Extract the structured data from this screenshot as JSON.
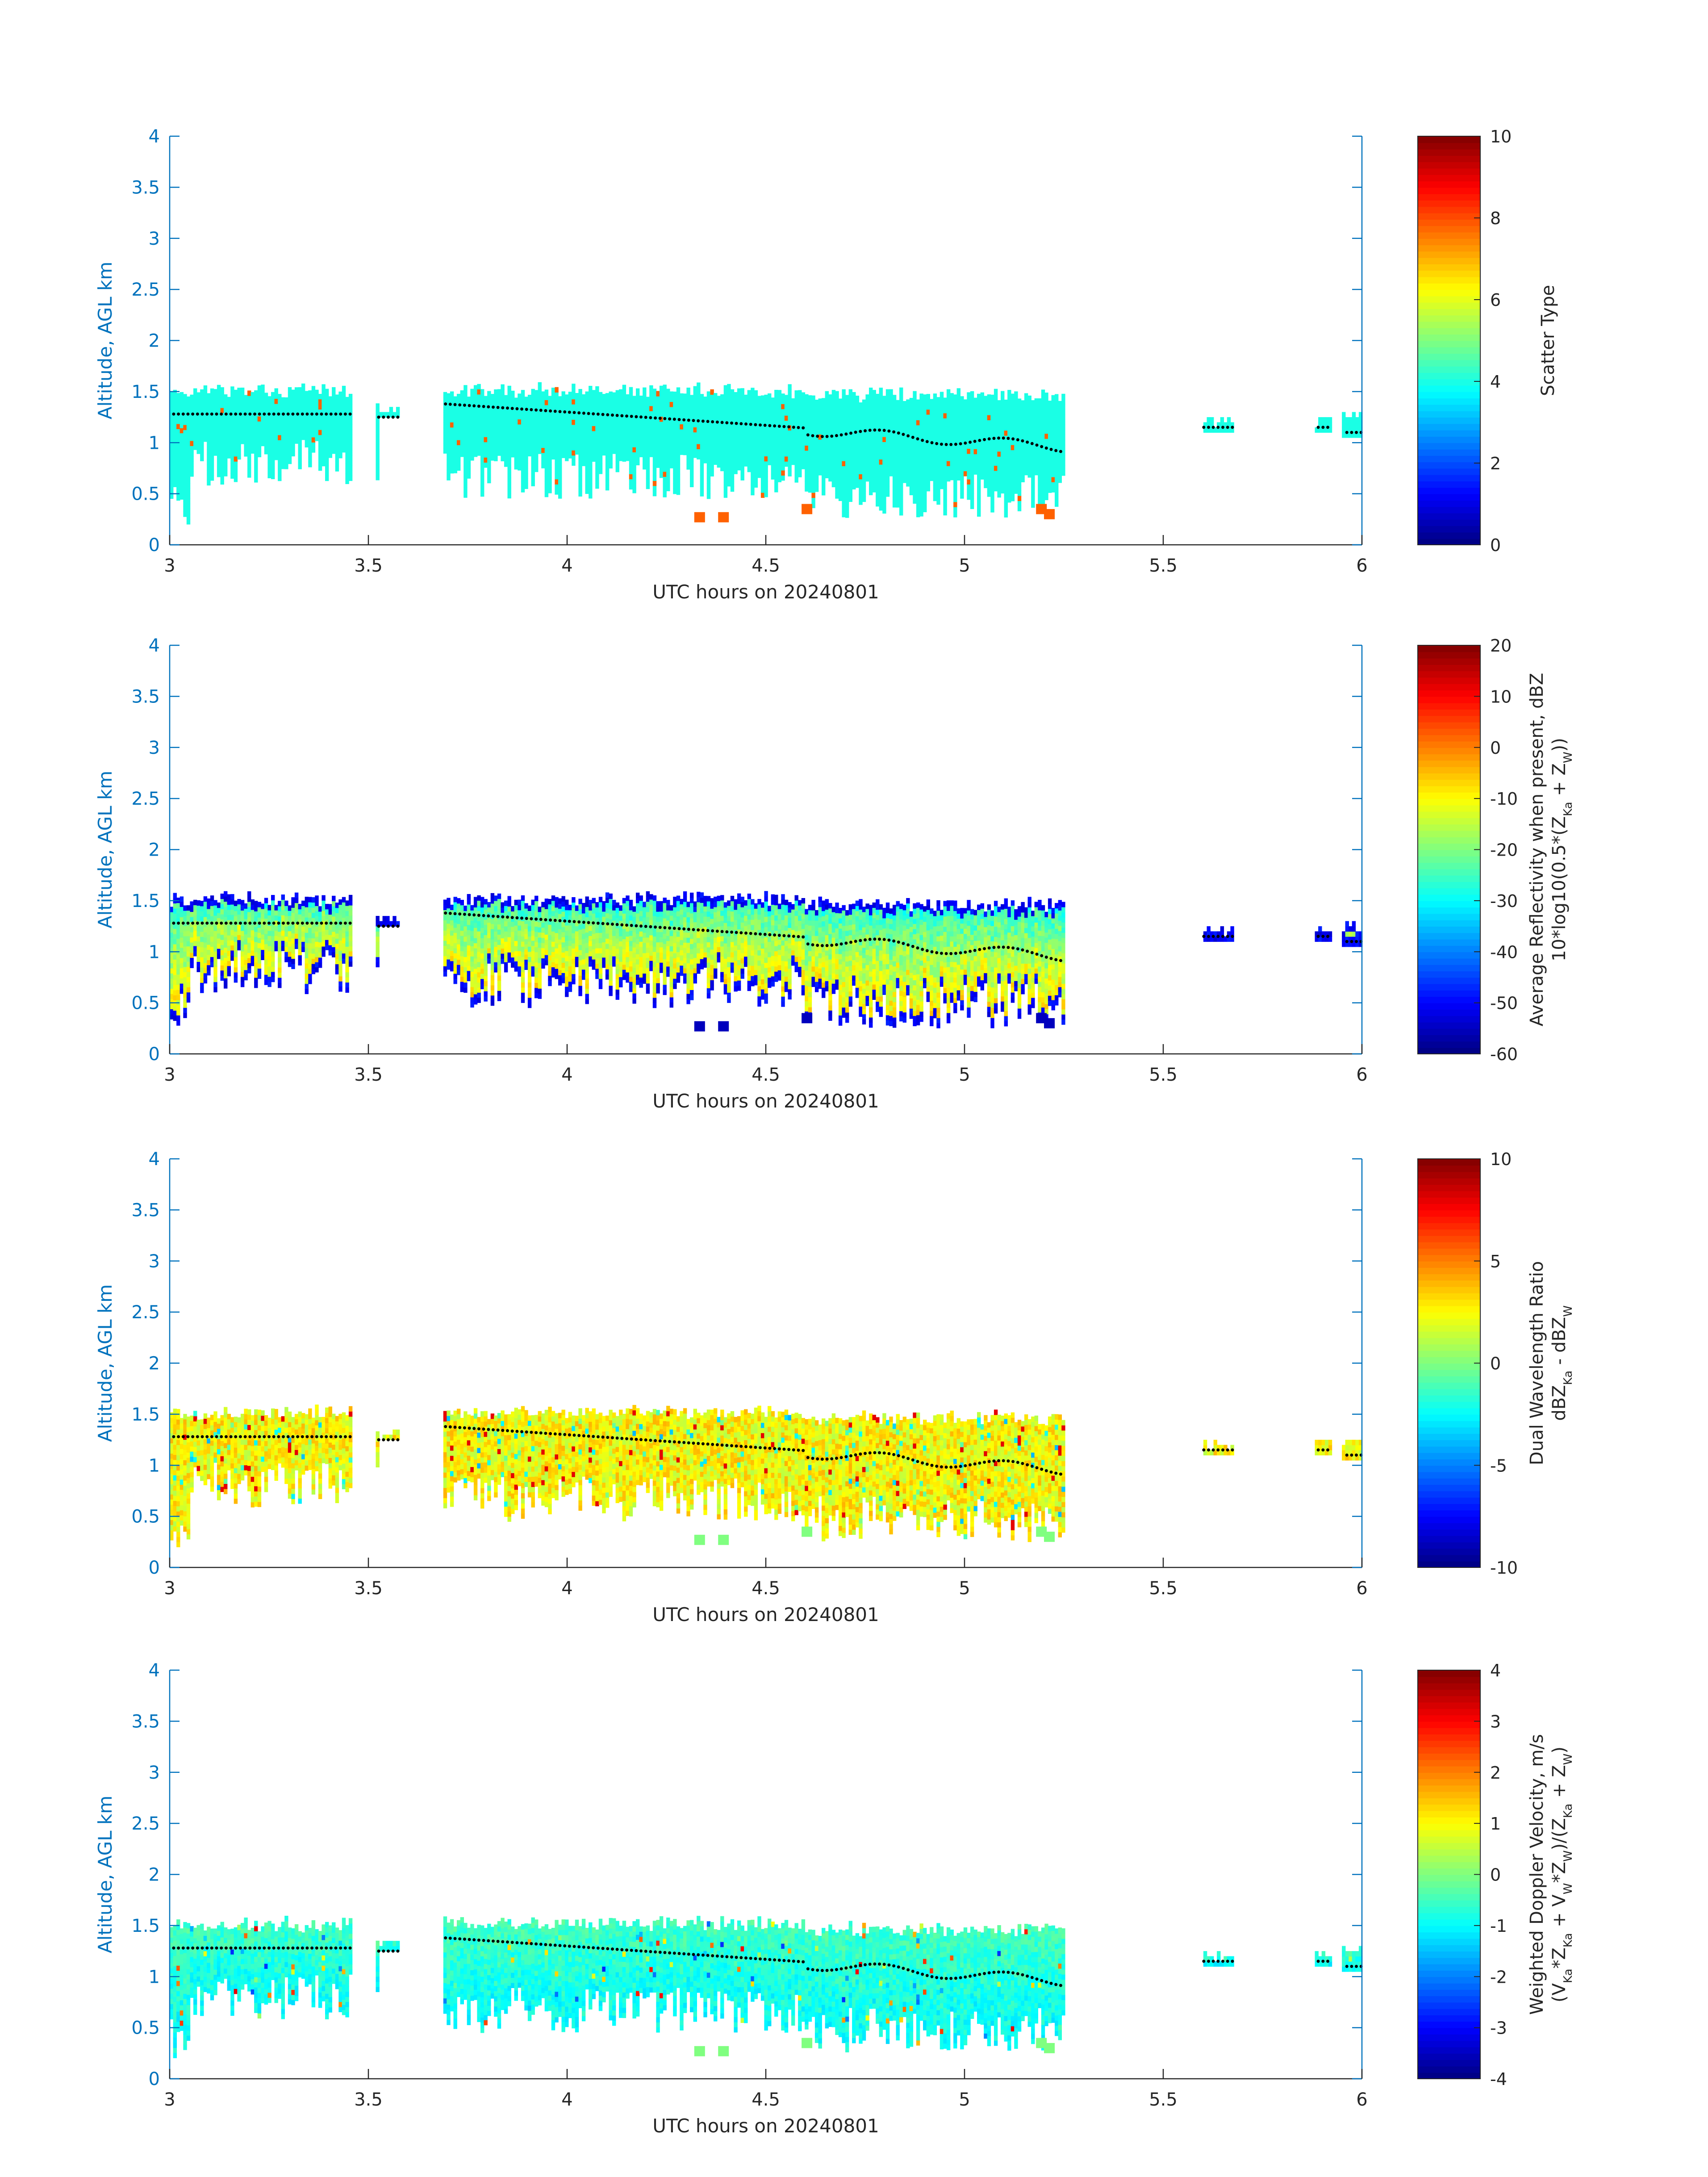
{
  "chart_data": [
    {
      "type": "heatmap",
      "title": "",
      "xlabel": "UTC hours on 20240801",
      "ylabel": "Altitude, AGL km",
      "xlim": [
        3,
        6
      ],
      "ylim": [
        0,
        4
      ],
      "xticks": [
        "3",
        "3.5",
        "4",
        "4.5",
        "5",
        "5.5",
        "6"
      ],
      "yticks": [
        "0",
        "0.5",
        "1",
        "1.5",
        "2",
        "2.5",
        "3",
        "3.5",
        "4"
      ],
      "colorbar": {
        "label": "Scatter Type",
        "label2": "",
        "lim": [
          0,
          10
        ],
        "ticks": [
          "0",
          "2",
          "4",
          "6",
          "8",
          "10"
        ]
      },
      "field": "scatter_type",
      "cloud_base_dots": true
    },
    {
      "type": "heatmap",
      "title": "",
      "xlabel": "UTC hours on 20240801",
      "ylabel": "Altitude, AGL km",
      "xlim": [
        3,
        6
      ],
      "ylim": [
        0,
        4
      ],
      "xticks": [
        "3",
        "3.5",
        "4",
        "4.5",
        "5",
        "5.5",
        "6"
      ],
      "yticks": [
        "0",
        "0.5",
        "1",
        "1.5",
        "2",
        "2.5",
        "3",
        "3.5",
        "4"
      ],
      "colorbar": {
        "label": "Average Reflectivity when present, dBZ",
        "label2": "10*log10(0.5*(Z_Ka + Z_W))",
        "lim": [
          -60,
          20
        ],
        "ticks": [
          "-60",
          "-50",
          "-40",
          "-30",
          "-20",
          "-10",
          "0",
          "10",
          "20"
        ]
      },
      "field": "reflectivity",
      "cloud_base_dots": true
    },
    {
      "type": "heatmap",
      "title": "",
      "xlabel": "UTC hours on 20240801",
      "ylabel": "Altitude, AGL km",
      "xlim": [
        3,
        6
      ],
      "ylim": [
        0,
        4
      ],
      "xticks": [
        "3",
        "3.5",
        "4",
        "4.5",
        "5",
        "5.5",
        "6"
      ],
      "yticks": [
        "0",
        "0.5",
        "1",
        "1.5",
        "2",
        "2.5",
        "3",
        "3.5",
        "4"
      ],
      "colorbar": {
        "label": "Dual Wavelength Ratio",
        "label2": "dBZ_Ka - dBZ_W",
        "lim": [
          -10,
          10
        ],
        "ticks": [
          "-10",
          "-5",
          "0",
          "5",
          "10"
        ]
      },
      "field": "dwr",
      "cloud_base_dots": true
    },
    {
      "type": "heatmap",
      "title": "",
      "xlabel": "UTC hours on 20240801",
      "ylabel": "Altitude, AGL km",
      "xlim": [
        3,
        6
      ],
      "ylim": [
        0,
        4
      ],
      "xticks": [
        "3",
        "3.5",
        "4",
        "4.5",
        "5",
        "5.5",
        "6"
      ],
      "yticks": [
        "0",
        "0.5",
        "1",
        "1.5",
        "2",
        "2.5",
        "3",
        "3.5",
        "4"
      ],
      "colorbar": {
        "label": "Weighted Doppler Velocity, m/s",
        "label2": "(V_Ka*Z_Ka + V_W*Z_W)/(Z_Ka + Z_W)",
        "lim": [
          -4,
          4
        ],
        "ticks": [
          "-4",
          "-3",
          "-2",
          "-1",
          "0",
          "1",
          "2",
          "3",
          "4"
        ]
      },
      "field": "velocity",
      "cloud_base_dots": true
    }
  ],
  "cloud_segments": [
    {
      "x0": 3.0,
      "x1": 3.46,
      "top": 1.55,
      "base": 1.28
    },
    {
      "x0": 3.52,
      "x1": 3.58,
      "top": 1.35,
      "base": 1.25
    },
    {
      "x0": 3.69,
      "x1": 4.6,
      "top": 1.55,
      "base": 1.15
    },
    {
      "x0": 4.6,
      "x1": 5.25,
      "top": 1.5,
      "base": 0.95
    },
    {
      "x0": 5.6,
      "x1": 5.68,
      "top": 1.25,
      "base": 1.15
    },
    {
      "x0": 5.88,
      "x1": 5.92,
      "top": 1.25,
      "base": 1.15
    },
    {
      "x0": 5.95,
      "x1": 6.0,
      "top": 1.3,
      "base": 1.1
    }
  ],
  "palette": {
    "axis": "#0072BD",
    "text": "#262626"
  }
}
